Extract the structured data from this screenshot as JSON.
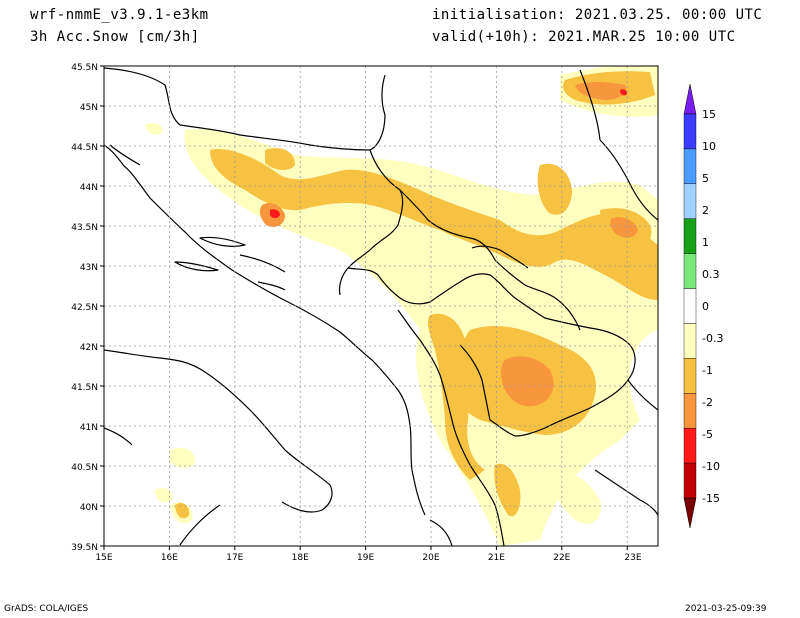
{
  "header": {
    "model": "wrf-nmmE_v3.9.1-e3km",
    "variable": "3h Acc.Snow [cm/3h]",
    "init": "initialisation: 2021.03.25.  00:00 UTC",
    "valid": "valid(+10h): 2021.MAR.25 10:00 UTC"
  },
  "footer": {
    "left": "GrADS: COLA/IGES",
    "right": "2021-03-25-09:39"
  },
  "map": {
    "lon_ticks": [
      "15E",
      "16E",
      "17E",
      "18E",
      "19E",
      "20E",
      "21E",
      "22E",
      "23E"
    ],
    "lat_ticks": [
      "45.5N",
      "45N",
      "44.5N",
      "44N",
      "43.5N",
      "43N",
      "42.5N",
      "42N",
      "41.5N",
      "41N",
      "40.5N",
      "40N",
      "39.5N"
    ]
  },
  "colorbar": {
    "labels": [
      "15",
      "10",
      "5",
      "2",
      "1",
      "0.3",
      "0",
      "-0.3",
      "-1",
      "-2",
      "-5",
      "-10",
      "-15"
    ],
    "colors": [
      "#7a1cf0",
      "#3c3cff",
      "#4a9cff",
      "#a0d0ff",
      "#19a019",
      "#78e878",
      "#ffffff",
      "#ffffc0",
      "#f7c141",
      "#f7963c",
      "#ff1a1a",
      "#c00000",
      "#7a0000"
    ]
  }
}
